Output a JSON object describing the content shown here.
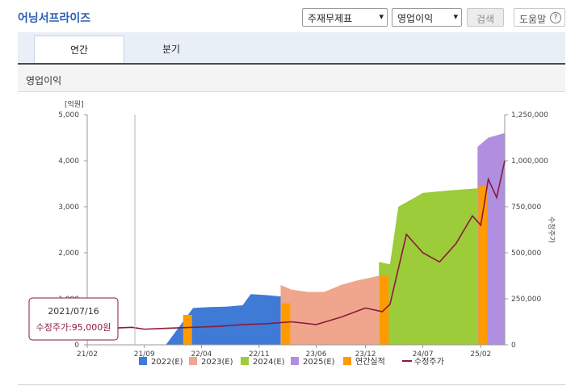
{
  "header": {
    "title": "어닝서프라이즈",
    "select_type": "주재무제표",
    "select_metric": "영업이익",
    "search_label": "검색",
    "help_label": "도움말",
    "help_icon": "?"
  },
  "tabs": [
    {
      "label": "연간",
      "active": true
    },
    {
      "label": "분기",
      "active": false
    }
  ],
  "section": {
    "title": "영업이익"
  },
  "chart_data": {
    "type": "area",
    "left_unit": "[억원]",
    "right_unit": "수정주가",
    "ylim_left": [
      0,
      5000
    ],
    "ylim_right": [
      0,
      1250000
    ],
    "left_ticks": [
      "5,000",
      "4,000",
      "3,000",
      "2,000",
      "1,000",
      "0"
    ],
    "right_ticks": [
      "1,250,000",
      "1,000,000",
      "750,000",
      "500,000",
      "250,000",
      "0"
    ],
    "x_ticks": [
      "21/02",
      "21/09",
      "22/04",
      "22/11",
      "23/06",
      "23/12",
      "24/07",
      "25/02"
    ],
    "colors": {
      "e2022": "#3f7bd6",
      "e2023": "#f0a58d",
      "e2024": "#9ccc3a",
      "e2025": "#b08fe0",
      "actual": "#ff9a00",
      "price": "#8b1a3a"
    },
    "series": [
      {
        "name": "2022(E)",
        "points": [
          [
            "2021-11-20",
            0
          ],
          [
            "2022-03-01",
            800
          ],
          [
            "2022-05-01",
            820
          ],
          [
            "2022-07-01",
            830
          ],
          [
            "2022-09-01",
            860
          ],
          [
            "2022-10-01",
            1100
          ],
          [
            "2022-12-01",
            1080
          ],
          [
            "2023-01-20",
            1050
          ]
        ]
      },
      {
        "name": "2023(E)",
        "points": [
          [
            "2023-01-20",
            1300
          ],
          [
            "2023-03-01",
            1200
          ],
          [
            "2023-05-01",
            1150
          ],
          [
            "2023-07-01",
            1150
          ],
          [
            "2023-09-01",
            1300
          ],
          [
            "2023-11-01",
            1400
          ],
          [
            "2024-01-20",
            1500
          ]
        ]
      },
      {
        "name": "2024(E)",
        "points": [
          [
            "2024-01-20",
            1800
          ],
          [
            "2024-03-01",
            1750
          ],
          [
            "2024-04-01",
            3000
          ],
          [
            "2024-07-01",
            3300
          ],
          [
            "2024-10-01",
            3350
          ],
          [
            "2025-01-20",
            3400
          ]
        ]
      },
      {
        "name": "2025(E)",
        "points": [
          [
            "2025-01-20",
            4300
          ],
          [
            "2025-03-01",
            4500
          ],
          [
            "2025-05-01",
            4600
          ]
        ]
      }
    ],
    "actual_bars": [
      {
        "name": "2021",
        "date": "2022-02-10",
        "value": 650
      },
      {
        "name": "2022",
        "date": "2023-02-10",
        "value": 900
      },
      {
        "name": "2023",
        "date": "2024-02-10",
        "value": 1500
      },
      {
        "name": "2024",
        "date": "2025-02-10",
        "value": 3450
      }
    ],
    "price_points": [
      [
        "2021-02-01",
        85000
      ],
      [
        "2021-05-01",
        90000
      ],
      [
        "2021-07-16",
        95000
      ],
      [
        "2021-09-01",
        85000
      ],
      [
        "2021-12-01",
        90000
      ],
      [
        "2022-03-01",
        95000
      ],
      [
        "2022-06-01",
        100000
      ],
      [
        "2022-09-01",
        110000
      ],
      [
        "2022-12-01",
        115000
      ],
      [
        "2023-03-01",
        125000
      ],
      [
        "2023-06-01",
        110000
      ],
      [
        "2023-09-01",
        150000
      ],
      [
        "2023-12-01",
        200000
      ],
      [
        "2024-02-01",
        180000
      ],
      [
        "2024-03-01",
        220000
      ],
      [
        "2024-05-01",
        600000
      ],
      [
        "2024-07-01",
        500000
      ],
      [
        "2024-09-01",
        450000
      ],
      [
        "2024-11-01",
        550000
      ],
      [
        "2025-01-01",
        700000
      ],
      [
        "2025-02-01",
        650000
      ],
      [
        "2025-03-01",
        900000
      ],
      [
        "2025-04-01",
        800000
      ],
      [
        "2025-05-01",
        1000000
      ]
    ],
    "legend": [
      "2022(E)",
      "2023(E)",
      "2024(E)",
      "2025(E)",
      "연간실적",
      "수정주가"
    ],
    "tooltip": {
      "date": "2021/07/16",
      "label": "수정주가:95,000원",
      "marker_date": "2021-07-16"
    }
  }
}
